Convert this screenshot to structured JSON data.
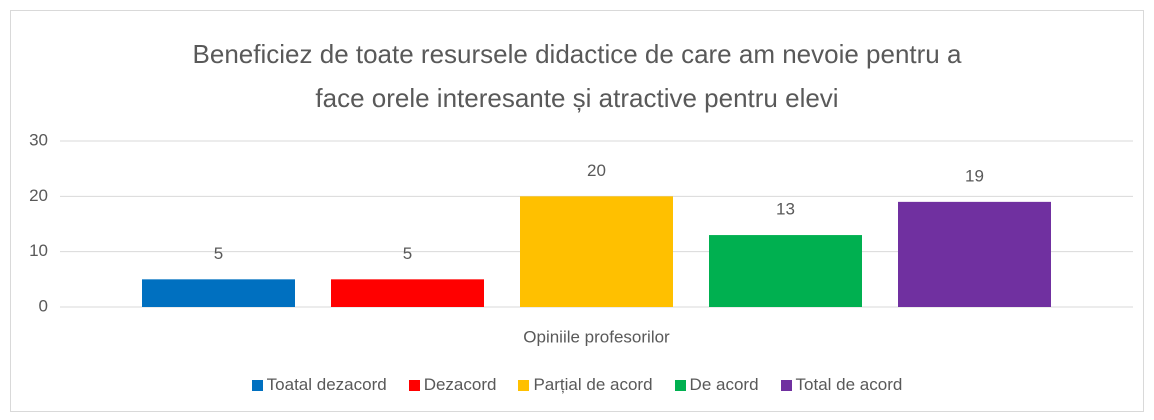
{
  "chart_data": {
    "type": "bar",
    "title": "Beneficiez de toate resursele didactice de care am nevoie pentru a\nface orele interesante și atractive pentru elevi",
    "categories": [
      "Opiniile profesorilor"
    ],
    "series": [
      {
        "name": "Toatal dezacord",
        "color": "#0070c0",
        "values": [
          5
        ]
      },
      {
        "name": "Dezacord",
        "color": "#ff0000",
        "values": [
          5
        ]
      },
      {
        "name": "Parțial de acord",
        "color": "#ffc000",
        "values": [
          20
        ]
      },
      {
        "name": "De acord",
        "color": "#00b050",
        "values": [
          13
        ]
      },
      {
        "name": "Total de acord",
        "color": "#7030a0",
        "values": [
          19
        ]
      }
    ],
    "ylim": [
      0,
      30
    ],
    "yticks": [
      0,
      10,
      20,
      30
    ],
    "grid": true,
    "legend": "bottom"
  }
}
